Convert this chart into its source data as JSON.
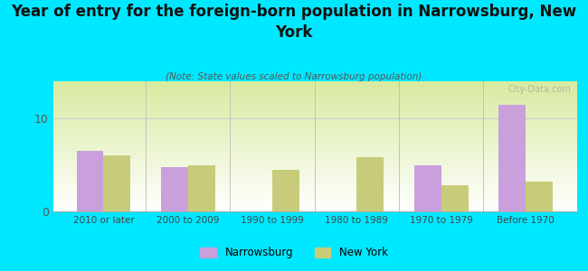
{
  "title": "Year of entry for the foreign-born population in Narrowsburg, New\nYork",
  "subtitle": "(Note: State values scaled to Narrowsburg population)",
  "categories": [
    "2010 or later",
    "2000 to 2009",
    "1990 to 1999",
    "1980 to 1989",
    "1970 to 1979",
    "Before 1970"
  ],
  "narrowsburg": [
    6.5,
    4.8,
    0,
    0,
    5.0,
    11.5
  ],
  "new_york": [
    6.0,
    5.0,
    4.5,
    5.8,
    2.8,
    3.2
  ],
  "narrowsburg_color": "#c9a0dc",
  "new_york_color": "#c8cc7a",
  "bg_outer": "#00e8ff",
  "ylim": [
    0,
    14
  ],
  "yticks": [
    0,
    10
  ],
  "bar_width": 0.32,
  "watermark": "City-Data.com",
  "legend_narrowsburg": "Narrowsburg",
  "legend_newyork": "New York",
  "title_fontsize": 12,
  "subtitle_fontsize": 7.5
}
